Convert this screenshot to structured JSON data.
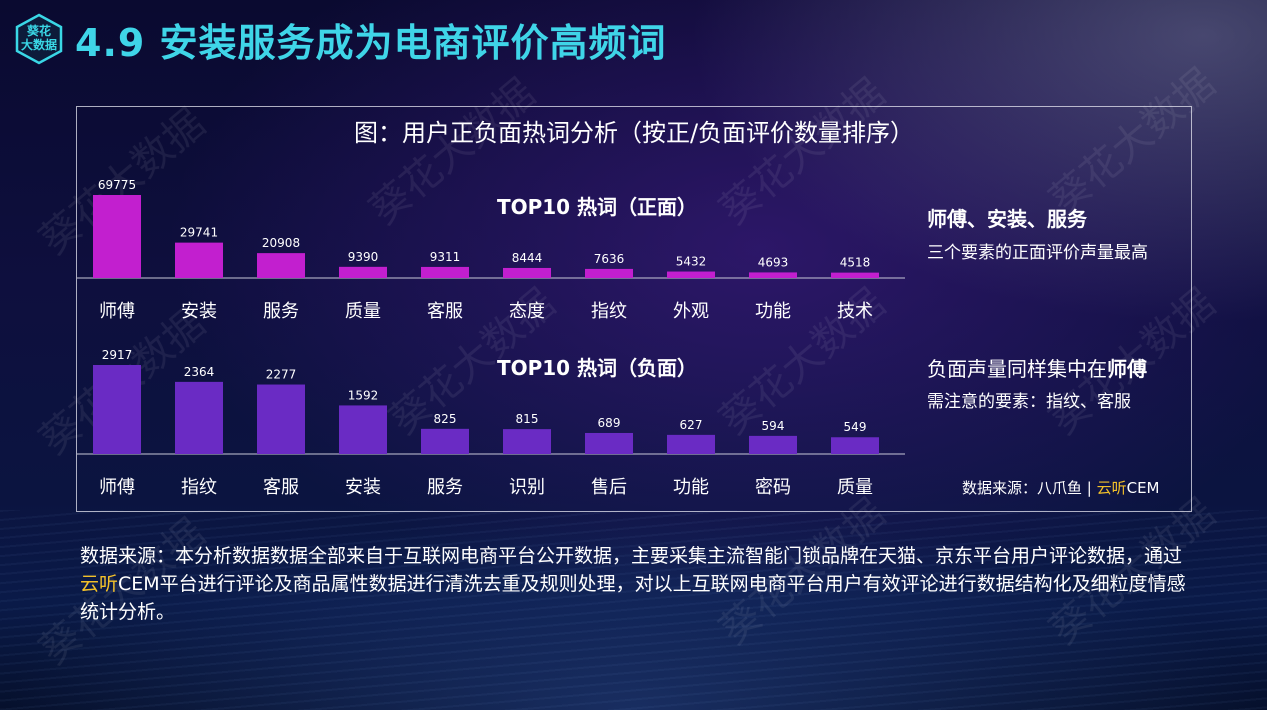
{
  "slide": {
    "logo_text_line1": "葵花",
    "logo_text_line2": "大数据",
    "title": "4.9 安装服务成为电商评价高频词",
    "watermark": "葵花大数据"
  },
  "panel": {
    "chart_title": "图：用户正负面热词分析（按正/负面评价数量排序）",
    "note_positive_bold": "师傅、安装、服务",
    "note_positive": "三个要素的正面评价声量最高",
    "note_negative_prefix": "负面声量同样集中在",
    "note_negative_bold": "师傅",
    "note_negative_focus": "需注意的要素：指纹、客服",
    "source_prefix": "数据来源：八爪鱼 | ",
    "source_highlight": "云听",
    "source_suffix": "CEM"
  },
  "footer": {
    "text_part1": "数据来源：本分析数据数据全部来自于互联网电商平台公开数据，主要采集主流智能门锁品牌在天猫、京东平台用户评论数据，通过",
    "text_highlight": "云听",
    "text_part2": "CEM平台进行评论及商品属性数据进行清洗去重及规则处理，对以上互联网电商平台用户有效评论进行数据结构化及细粒度情感统计分析。"
  },
  "colors": {
    "positive_bar": "#c21fcf",
    "negative_bar": "#6a2bc4",
    "title": "#3fd5e8",
    "highlight": "#f2c02a"
  },
  "chart_data": [
    {
      "type": "bar",
      "title": "TOP10 热词（正面）",
      "categories": [
        "师傅",
        "安装",
        "服务",
        "质量",
        "客服",
        "态度",
        "指纹",
        "外观",
        "功能",
        "技术"
      ],
      "values": [
        69775,
        29741,
        20908,
        9390,
        9311,
        8444,
        7636,
        5432,
        4693,
        4518
      ],
      "ylim": [
        0,
        69775
      ],
      "grid": false,
      "show_values": true
    },
    {
      "type": "bar",
      "title": "TOP10 热词（负面）",
      "categories": [
        "师傅",
        "指纹",
        "客服",
        "安装",
        "服务",
        "识别",
        "售后",
        "功能",
        "密码",
        "质量"
      ],
      "values": [
        2917,
        2364,
        2277,
        1592,
        825,
        815,
        689,
        627,
        594,
        549
      ],
      "ylim": [
        0,
        2917
      ],
      "grid": false,
      "show_values": true
    }
  ]
}
